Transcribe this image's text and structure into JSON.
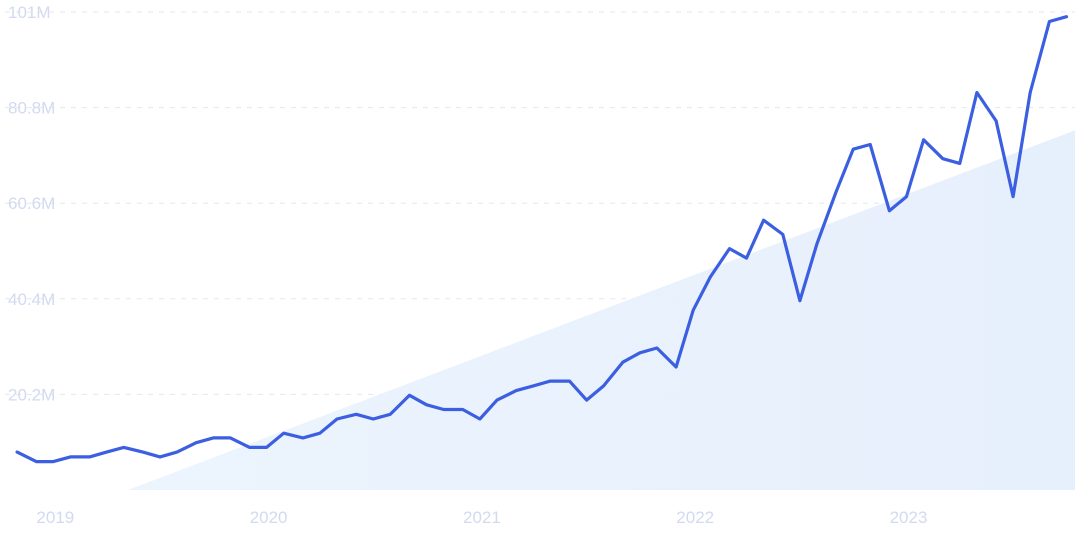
{
  "chart_data": {
    "type": "line",
    "title": "",
    "xlabel": "",
    "ylabel": "",
    "grid": true,
    "legend": "none",
    "y_ticks": [
      {
        "value": 20.2,
        "label": "20.2M"
      },
      {
        "value": 40.4,
        "label": "40.4M"
      },
      {
        "value": 60.6,
        "label": "60.6M"
      },
      {
        "value": 80.8,
        "label": "80.8M"
      },
      {
        "value": 101,
        "label": "101M"
      }
    ],
    "x_ticks": [
      {
        "value": 2019.0,
        "label": "2019"
      },
      {
        "value": 2020.0,
        "label": "2020"
      },
      {
        "value": 2021.0,
        "label": "2021"
      },
      {
        "value": 2022.0,
        "label": "2022"
      },
      {
        "value": 2023.0,
        "label": "2023"
      }
    ],
    "xlim": [
      2018.75,
      2023.79
    ],
    "ylim": [
      0,
      101
    ],
    "series": [
      {
        "color": "#3b5fe0",
        "x": [
          2018.83,
          2018.92,
          2019.0,
          2019.08,
          2019.17,
          2019.25,
          2019.33,
          2019.42,
          2019.5,
          2019.58,
          2019.67,
          2019.75,
          2019.83,
          2019.92,
          2020.0,
          2020.08,
          2020.17,
          2020.25,
          2020.33,
          2020.42,
          2020.5,
          2020.58,
          2020.67,
          2020.75,
          2020.83,
          2020.92,
          2021.0,
          2021.08,
          2021.17,
          2021.25,
          2021.33,
          2021.42,
          2021.5,
          2021.58,
          2021.67,
          2021.75,
          2021.83,
          2021.92,
          2022.0,
          2022.08,
          2022.17,
          2022.25,
          2022.33,
          2022.42,
          2022.5,
          2022.58,
          2022.67,
          2022.75,
          2022.83,
          2022.92,
          2023.0,
          2023.08,
          2023.17,
          2023.25,
          2023.33,
          2023.42,
          2023.5,
          2023.58,
          2023.67,
          2023.75
        ],
        "values": [
          8,
          6,
          6,
          7,
          7,
          8,
          9,
          8,
          7,
          8,
          10,
          11,
          11,
          9,
          9,
          12,
          11,
          12,
          15,
          16,
          15,
          16,
          20,
          18,
          17,
          17,
          15,
          19,
          21,
          22,
          23,
          23,
          19,
          22,
          27,
          29,
          30,
          26,
          38,
          45,
          51,
          49,
          57,
          54,
          40,
          52,
          63,
          72,
          73,
          59,
          62,
          74,
          70,
          69,
          84,
          78,
          62,
          84,
          99,
          100
        ]
      }
    ],
    "trend_area": {
      "color": "#eaf2fc",
      "x": [
        2019.35,
        2023.79
      ],
      "y": [
        0,
        76
      ]
    }
  }
}
